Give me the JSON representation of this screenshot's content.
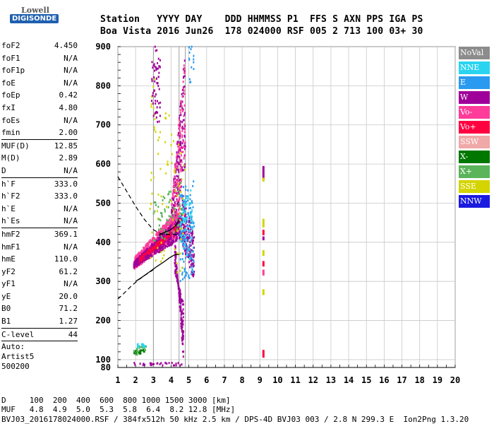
{
  "logo": {
    "line1": "Lowell",
    "line2": "DIGISONDE"
  },
  "header": {
    "row1": "Station   YYYY DAY    DDD HHMMSS P1  FFS S AXN PPS IGA PS",
    "row2": "Boa Vista 2016 Jun26  178 024000 RSF 005 2 713 100 03+ 30"
  },
  "params": [
    {
      "name": "foF2",
      "value": "4.450"
    },
    {
      "name": "foF1",
      "value": "N/A"
    },
    {
      "name": "foF1p",
      "value": "N/A"
    },
    {
      "name": "foE",
      "value": "N/A"
    },
    {
      "name": "foEp",
      "value": "0.42"
    },
    {
      "name": "fxI",
      "value": "4.80"
    },
    {
      "name": "foEs",
      "value": "N/A"
    },
    {
      "name": "fmin",
      "value": "2.00",
      "sep": true
    },
    {
      "name": "MUF(D)",
      "value": "12.85"
    },
    {
      "name": "M(D)",
      "value": "2.89"
    },
    {
      "name": "D",
      "value": "N/A",
      "sep": true
    },
    {
      "name": "h`F",
      "value": "333.0"
    },
    {
      "name": "h`F2",
      "value": "333.0"
    },
    {
      "name": "h`E",
      "value": "N/A"
    },
    {
      "name": "h`Es",
      "value": "N/A",
      "sep": true
    },
    {
      "name": "hmF2",
      "value": "369.1"
    },
    {
      "name": "hmF1",
      "value": "N/A"
    },
    {
      "name": "hmE",
      "value": "110.0"
    },
    {
      "name": "yF2",
      "value": "61.2"
    },
    {
      "name": "yF1",
      "value": "N/A"
    },
    {
      "name": "yE",
      "value": "20.0"
    },
    {
      "name": "B0",
      "value": "71.2"
    },
    {
      "name": "B1",
      "value": "1.27",
      "sep": true
    },
    {
      "name": "C-level",
      "value": "44",
      "sep": true
    }
  ],
  "autoscale": {
    "line1": "Auto:",
    "line2": "Artist5",
    "line3": "500200"
  },
  "legend": [
    {
      "label": "NoVal",
      "color": "#8c8c8c"
    },
    {
      "label": "NNE",
      "color": "#2ad4f0"
    },
    {
      "label": "E",
      "color": "#2a9af0"
    },
    {
      "label": "W",
      "color": "#a0009a"
    },
    {
      "label": "Vo-",
      "color": "#ff3c9a"
    },
    {
      "label": "Vo+",
      "color": "#ff0040"
    },
    {
      "label": "SSW",
      "color": "#f0a8a8"
    },
    {
      "label": "X-",
      "color": "#007800"
    },
    {
      "label": "X+",
      "color": "#5ab45a"
    },
    {
      "label": "SSE",
      "color": "#d4d400"
    },
    {
      "label": "NNW",
      "color": "#1a1ae0"
    }
  ],
  "footer": {
    "d_row": "D     100  200  400  600  800 1000 1500 3000 [km]",
    "muf_row": "MUF   4.8  4.9  5.0  5.3  5.8  6.4  8.2 12.8 [MHz]",
    "file_row": "BVJ03_2016178024000.RSF / 384fx512h 50 kHz 2.5 km / DPS-4D BVJ03 003 / 2.8 N 299.3 E  Ion2Png 1.3.20"
  },
  "chart_data": {
    "type": "scatter",
    "xlim": [
      1,
      20
    ],
    "ylim": [
      80,
      900
    ],
    "xticks": [
      1,
      2,
      3,
      4,
      5,
      6,
      7,
      8,
      9,
      10,
      11,
      12,
      13,
      14,
      15,
      16,
      17,
      18,
      19,
      20
    ],
    "yticks": [
      100,
      200,
      300,
      400,
      500,
      600,
      700,
      800,
      900
    ],
    "grid": true,
    "markers": {
      "vertical_lines_at_freq": [
        3.0,
        4.45,
        4.8
      ]
    },
    "profile_solid": {
      "x": [
        2.0,
        2.4,
        2.8,
        3.2,
        3.6,
        3.9,
        4.2,
        4.45
      ],
      "y": [
        300,
        312,
        325,
        338,
        350,
        360,
        368,
        369
      ]
    },
    "profile_upper": {
      "x": [
        3.3,
        3.6,
        3.9,
        4.2,
        4.45
      ],
      "y": [
        418,
        425,
        430,
        440,
        455
      ]
    },
    "muf_dashed": {
      "x": [
        1.0,
        1.5,
        2.0,
        2.5,
        3.0,
        3.5,
        4.0,
        4.45
      ],
      "y": [
        568,
        530,
        492,
        458,
        432,
        420,
        420,
        420
      ]
    },
    "lower_dashed": {
      "x": [
        1.0,
        1.4,
        1.8,
        2.2,
        2.6,
        3.0
      ],
      "y": [
        255,
        272,
        290,
        305,
        318,
        330
      ]
    },
    "clusters": [
      {
        "name": "F2 trace main",
        "x_range": [
          1.9,
          4.5
        ],
        "y_start": [
          330,
          420
        ],
        "y_end": [
          360,
          490
        ],
        "color": "#ff3c9a",
        "n": 700
      },
      {
        "name": "F2 trace W",
        "x_range": [
          1.9,
          4.6
        ],
        "y_start": [
          335,
          410
        ],
        "y_end": [
          350,
          470
        ],
        "color": "#a0009a",
        "n": 500
      },
      {
        "name": "F2 trace Vo+",
        "x_range": [
          2.2,
          4.3
        ],
        "y_start": [
          345,
          430
        ],
        "y_end": [
          360,
          440
        ],
        "color": "#ff0040",
        "n": 150
      },
      {
        "name": "F2 oblique upper",
        "x_range": [
          4.0,
          4.8
        ],
        "y_start": [
          380,
          600
        ],
        "y_end": [
          480,
          900
        ],
        "color": "#a0009a",
        "n": 200
      },
      {
        "name": "F2 oblique upper pink",
        "x_range": [
          4.0,
          4.8
        ],
        "y_start": [
          380,
          600
        ],
        "y_end": [
          480,
          900
        ],
        "color": "#ff3c9a",
        "n": 150
      },
      {
        "name": "cusp descending",
        "x_range": [
          4.2,
          4.7
        ],
        "y_start": [
          320,
          250
        ],
        "y_end": [
          420,
          90
        ],
        "color": "#a0009a",
        "n": 200
      },
      {
        "name": "high freq band",
        "x_range": [
          4.6,
          5.3
        ],
        "y_start": [
          400,
          300
        ],
        "y_end": [
          530,
          420
        ],
        "color": "#a0009a",
        "n": 200
      },
      {
        "name": "high freq E",
        "x_range": [
          4.5,
          5.3
        ],
        "y_start": [
          300,
          310
        ],
        "y_end": [
          540,
          560
        ],
        "color": "#2a9af0",
        "n": 120
      },
      {
        "name": "high freq NNE",
        "x_range": [
          4.5,
          5.2
        ],
        "y_start": [
          400,
          330
        ],
        "y_end": [
          500,
          540
        ],
        "color": "#2ad4f0",
        "n": 80
      },
      {
        "name": "spread SSE",
        "x_range": [
          2.8,
          4.8
        ],
        "y_start": [
          360,
          300
        ],
        "y_end": [
          850,
          620
        ],
        "color": "#d4d400",
        "n": 90
      },
      {
        "name": "spread X+",
        "x_range": [
          3.0,
          4.6
        ],
        "y_start": [
          400,
          420
        ],
        "y_end": [
          500,
          560
        ],
        "color": "#5ab45a",
        "n": 60
      },
      {
        "name": "upper vertical band",
        "x_range": [
          2.9,
          3.4
        ],
        "y_start": [
          720,
          700
        ],
        "y_end": [
          900,
          900
        ],
        "color": "#a0009a",
        "n": 60
      },
      {
        "name": "top right streak",
        "x_range": [
          5.0,
          5.3
        ],
        "y_start": [
          800,
          820
        ],
        "y_end": [
          900,
          900
        ],
        "color": "#2a9af0",
        "n": 15
      },
      {
        "name": "low freq E layer",
        "x_range": [
          1.9,
          2.6
        ],
        "y_start": [
          110,
          120
        ],
        "y_end": [
          130,
          140
        ],
        "color": "#5ab45a",
        "n": 30
      },
      {
        "name": "low freq E layer NNE",
        "x_range": [
          2.1,
          2.6
        ],
        "y_start": [
          130,
          130
        ],
        "y_end": [
          140,
          140
        ],
        "color": "#2ad4f0",
        "n": 15
      },
      {
        "name": "bottom noise",
        "x_range": [
          1.9,
          4.8
        ],
        "y_start": [
          85,
          85
        ],
        "y_end": [
          92,
          92
        ],
        "color": "#a0009a",
        "n": 30
      },
      {
        "name": "low X-",
        "x_range": [
          1.9,
          2.5
        ],
        "y_start": [
          115,
          115
        ],
        "y_end": [
          125,
          125
        ],
        "color": "#007800",
        "n": 15
      }
    ],
    "bars_at_9_2": [
      {
        "y1": 560,
        "y2": 595,
        "color": "#a0009a"
      },
      {
        "y1": 555,
        "y2": 565,
        "color": "#d4d400"
      },
      {
        "y1": 438,
        "y2": 460,
        "color": "#d4d400"
      },
      {
        "y1": 418,
        "y2": 432,
        "color": "#ff0040"
      },
      {
        "y1": 405,
        "y2": 415,
        "color": "#a0009a"
      },
      {
        "y1": 365,
        "y2": 380,
        "color": "#d4d400"
      },
      {
        "y1": 338,
        "y2": 352,
        "color": "#ff0040"
      },
      {
        "y1": 315,
        "y2": 330,
        "color": "#ff3c9a"
      },
      {
        "y1": 265,
        "y2": 280,
        "color": "#d4d400"
      },
      {
        "y1": 105,
        "y2": 125,
        "color": "#ff0040"
      }
    ]
  }
}
